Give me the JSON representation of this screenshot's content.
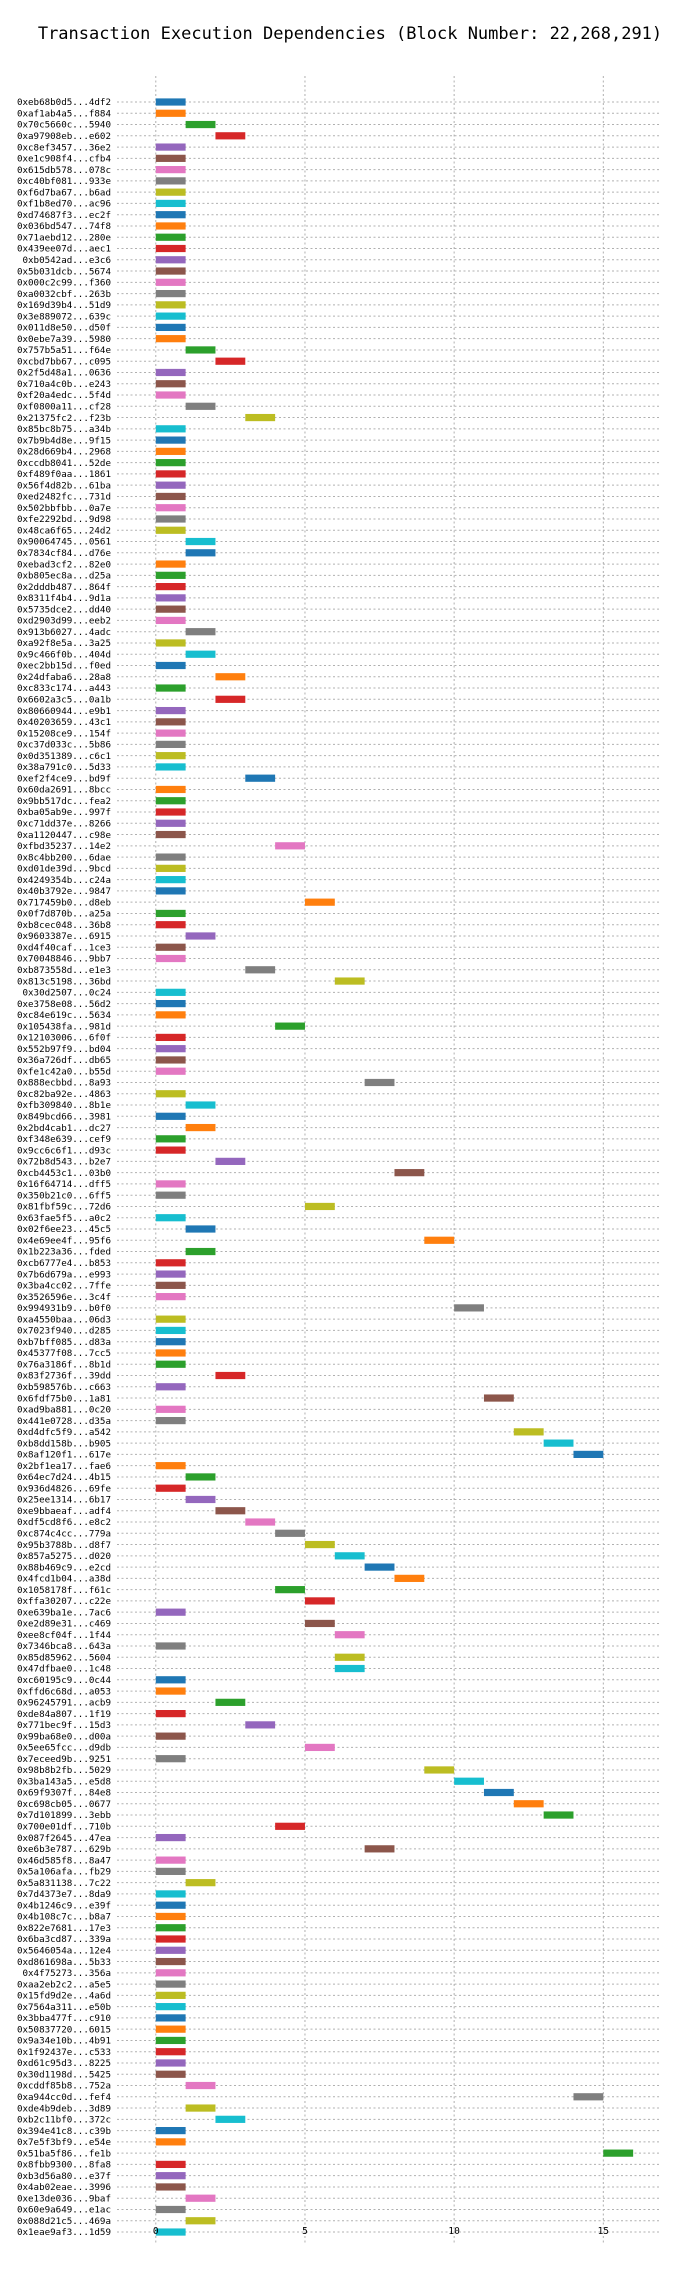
{
  "chart_data": {
    "type": "bar",
    "orientation": "horizontal",
    "title": "Transaction Execution Dependencies (Block Number: 22,268,291)",
    "xlabel": "",
    "ylabel": "",
    "xlim": [
      -1.3,
      16.9
    ],
    "xticks": [
      0,
      5,
      10,
      15
    ],
    "grid": true,
    "colors": [
      "#1f77b4",
      "#ff7f0e",
      "#2ca02c",
      "#d62728",
      "#9467bd",
      "#8c564b",
      "#e377c2",
      "#7f7f7f",
      "#bcbd22",
      "#17becf"
    ],
    "rows": [
      {
        "tx": "0xeb68b0d5...4df2",
        "start": 0,
        "c": 0
      },
      {
        "tx": "0xaf1ab4a5...f884",
        "start": 0,
        "c": 1
      },
      {
        "tx": "0x70c5660c...5940",
        "start": 1,
        "c": 2
      },
      {
        "tx": "0xa97908eb...e602",
        "start": 2,
        "c": 3
      },
      {
        "tx": "0xc8ef3457...36e2",
        "start": 0,
        "c": 4
      },
      {
        "tx": "0xe1c908f4...cfb4",
        "start": 0,
        "c": 5
      },
      {
        "tx": "0x615db578...078c",
        "start": 0,
        "c": 6
      },
      {
        "tx": "0xc40bf081...933e",
        "start": 0,
        "c": 7
      },
      {
        "tx": "0xf6d7ba67...b6ad",
        "start": 0,
        "c": 8
      },
      {
        "tx": "0xf1b8ed70...ac96",
        "start": 0,
        "c": 9
      },
      {
        "tx": "0xd74687f3...ec2f",
        "start": 0,
        "c": 0
      },
      {
        "tx": "0x036bd547...74f8",
        "start": 0,
        "c": 1
      },
      {
        "tx": "0x71aebd12...280e",
        "start": 0,
        "c": 2
      },
      {
        "tx": "0x439ee07d...aec1",
        "start": 0,
        "c": 3
      },
      {
        "tx": "0xb0542ad...e3c6",
        "start": 0,
        "c": 4
      },
      {
        "tx": "0x5b031dcb...5674",
        "start": 0,
        "c": 5
      },
      {
        "tx": "0x000c2c99...f360",
        "start": 0,
        "c": 6
      },
      {
        "tx": "0xa0032cbf...263b",
        "start": 0,
        "c": 7
      },
      {
        "tx": "0x169d39b4...51d9",
        "start": 0,
        "c": 8
      },
      {
        "tx": "0x3e889072...639c",
        "start": 0,
        "c": 9
      },
      {
        "tx": "0x011d8e50...d50f",
        "start": 0,
        "c": 0
      },
      {
        "tx": "0x0ebe7a39...5980",
        "start": 0,
        "c": 1
      },
      {
        "tx": "0x757b5a51...f64e",
        "start": 1,
        "c": 2
      },
      {
        "tx": "0xcbd7bb67...c095",
        "start": 2,
        "c": 3
      },
      {
        "tx": "0x2f5d48a1...0636",
        "start": 0,
        "c": 4
      },
      {
        "tx": "0x710a4c0b...e243",
        "start": 0,
        "c": 5
      },
      {
        "tx": "0xf20a4edc...5f4d",
        "start": 0,
        "c": 6
      },
      {
        "tx": "0xf0800a11...cf28",
        "start": 1,
        "c": 7
      },
      {
        "tx": "0x21375fc2...f23b",
        "start": 3,
        "c": 8
      },
      {
        "tx": "0x85bc8b75...a34b",
        "start": 0,
        "c": 9
      },
      {
        "tx": "0x7b9b4d8e...9f15",
        "start": 0,
        "c": 0
      },
      {
        "tx": "0x28d669b4...2968",
        "start": 0,
        "c": 1
      },
      {
        "tx": "0xccdb8041...52de",
        "start": 0,
        "c": 2
      },
      {
        "tx": "0xf489f0aa...1861",
        "start": 0,
        "c": 3
      },
      {
        "tx": "0x56f4d82b...61ba",
        "start": 0,
        "c": 4
      },
      {
        "tx": "0xed2482fc...731d",
        "start": 0,
        "c": 5
      },
      {
        "tx": "0x502bbfbb...0a7e",
        "start": 0,
        "c": 6
      },
      {
        "tx": "0xfe2292bd...9d98",
        "start": 0,
        "c": 7
      },
      {
        "tx": "0x48ca6f65...24d2",
        "start": 0,
        "c": 8
      },
      {
        "tx": "0x90064745...0561",
        "start": 1,
        "c": 9
      },
      {
        "tx": "0x7834cf84...d76e",
        "start": 1,
        "c": 0
      },
      {
        "tx": "0xebad3cf2...82e0",
        "start": 0,
        "c": 1
      },
      {
        "tx": "0xb805ec8a...d25a",
        "start": 0,
        "c": 2
      },
      {
        "tx": "0x2dddb487...864f",
        "start": 0,
        "c": 3
      },
      {
        "tx": "0x8311f4b4...9d1a",
        "start": 0,
        "c": 4
      },
      {
        "tx": "0x5735dce2...dd40",
        "start": 0,
        "c": 5
      },
      {
        "tx": "0xd2903d99...eeb2",
        "start": 0,
        "c": 6
      },
      {
        "tx": "0x913b6027...4adc",
        "start": 1,
        "c": 7
      },
      {
        "tx": "0xa92f8e5a...3a25",
        "start": 0,
        "c": 8
      },
      {
        "tx": "0x9c466f0b...404d",
        "start": 1,
        "c": 9
      },
      {
        "tx": "0xec2bb15d...f0ed",
        "start": 0,
        "c": 0
      },
      {
        "tx": "0x24dfaba6...28a8",
        "start": 2,
        "c": 1
      },
      {
        "tx": "0xc833c174...a443",
        "start": 0,
        "c": 2
      },
      {
        "tx": "0x6602a3c5...0a1b",
        "start": 2,
        "c": 3
      },
      {
        "tx": "0x80660944...e9b1",
        "start": 0,
        "c": 4
      },
      {
        "tx": "0x40203659...43c1",
        "start": 0,
        "c": 5
      },
      {
        "tx": "0x15208ce9...154f",
        "start": 0,
        "c": 6
      },
      {
        "tx": "0xc37d033c...5b86",
        "start": 0,
        "c": 7
      },
      {
        "tx": "0x0d351389...c6c1",
        "start": 0,
        "c": 8
      },
      {
        "tx": "0x38a791c0...5d33",
        "start": 0,
        "c": 9
      },
      {
        "tx": "0xef2f4ce9...bd9f",
        "start": 3,
        "c": 0
      },
      {
        "tx": "0x60da2691...8bcc",
        "start": 0,
        "c": 1
      },
      {
        "tx": "0x9bb517dc...fea2",
        "start": 0,
        "c": 2
      },
      {
        "tx": "0xba05ab9e...997f",
        "start": 0,
        "c": 3
      },
      {
        "tx": "0xc71dd37e...8266",
        "start": 0,
        "c": 4
      },
      {
        "tx": "0xa1120447...c98e",
        "start": 0,
        "c": 5
      },
      {
        "tx": "0xfbd35237...14e2",
        "start": 4,
        "c": 6
      },
      {
        "tx": "0x8c4bb200...6dae",
        "start": 0,
        "c": 7
      },
      {
        "tx": "0xd01de39d...9bcd",
        "start": 0,
        "c": 8
      },
      {
        "tx": "0x4249354b...c24a",
        "start": 0,
        "c": 9
      },
      {
        "tx": "0x40b3792e...9847",
        "start": 0,
        "c": 0
      },
      {
        "tx": "0x717459b0...d8eb",
        "start": 5,
        "c": 1
      },
      {
        "tx": "0x0f7d870b...a25a",
        "start": 0,
        "c": 2
      },
      {
        "tx": "0xb8cec048...36b8",
        "start": 0,
        "c": 3
      },
      {
        "tx": "0x9603387e...6915",
        "start": 1,
        "c": 4
      },
      {
        "tx": "0xd4f40caf...1ce3",
        "start": 0,
        "c": 5
      },
      {
        "tx": "0x70048846...9bb7",
        "start": 0,
        "c": 6
      },
      {
        "tx": "0xb873558d...e1e3",
        "start": 3,
        "c": 7
      },
      {
        "tx": "0x813c5198...36bd",
        "start": 6,
        "c": 8
      },
      {
        "tx": "0x30d2507...0c24",
        "start": 0,
        "c": 9
      },
      {
        "tx": "0xe3758e08...56d2",
        "start": 0,
        "c": 0
      },
      {
        "tx": "0xc84e619c...5634",
        "start": 0,
        "c": 1
      },
      {
        "tx": "0x105438fa...981d",
        "start": 4,
        "c": 2
      },
      {
        "tx": "0x12103006...6f0f",
        "start": 0,
        "c": 3
      },
      {
        "tx": "0x552b97f9...bd04",
        "start": 0,
        "c": 4
      },
      {
        "tx": "0x36a726df...db65",
        "start": 0,
        "c": 5
      },
      {
        "tx": "0xfe1c42a0...b55d",
        "start": 0,
        "c": 6
      },
      {
        "tx": "0x888ecbbd...8a93",
        "start": 7,
        "c": 7
      },
      {
        "tx": "0xc82ba92e...4863",
        "start": 0,
        "c": 8
      },
      {
        "tx": "0xfb309840...8b1e",
        "start": 1,
        "c": 9
      },
      {
        "tx": "0x849bcd66...3981",
        "start": 0,
        "c": 0
      },
      {
        "tx": "0x2bd4cab1...dc27",
        "start": 1,
        "c": 1
      },
      {
        "tx": "0xf348e639...cef9",
        "start": 0,
        "c": 2
      },
      {
        "tx": "0x9cc6c6f1...d93c",
        "start": 0,
        "c": 3
      },
      {
        "tx": "0x72b8d543...b2e7",
        "start": 2,
        "c": 4
      },
      {
        "tx": "0xcb4453c1...03b0",
        "start": 8,
        "c": 5
      },
      {
        "tx": "0x16f64714...dff5",
        "start": 0,
        "c": 6
      },
      {
        "tx": "0x350b21c0...6ff5",
        "start": 0,
        "c": 7
      },
      {
        "tx": "0x81fbf59c...72d6",
        "start": 5,
        "c": 8
      },
      {
        "tx": "0x63fae5f5...a0c2",
        "start": 0,
        "c": 9
      },
      {
        "tx": "0x02f6ee23...45c5",
        "start": 1,
        "c": 0
      },
      {
        "tx": "0x4e69ee4f...95f6",
        "start": 9,
        "c": 1
      },
      {
        "tx": "0x1b223a36...fded",
        "start": 1,
        "c": 2
      },
      {
        "tx": "0xcb6777e4...b853",
        "start": 0,
        "c": 3
      },
      {
        "tx": "0x7b6d679a...e993",
        "start": 0,
        "c": 4
      },
      {
        "tx": "0x3ba4cc02...7ffe",
        "start": 0,
        "c": 5
      },
      {
        "tx": "0x3526596e...3c4f",
        "start": 0,
        "c": 6
      },
      {
        "tx": "0x994931b9...b0f0",
        "start": 10,
        "c": 7
      },
      {
        "tx": "0xa4550baa...06d3",
        "start": 0,
        "c": 8
      },
      {
        "tx": "0x7023f940...d285",
        "start": 0,
        "c": 9
      },
      {
        "tx": "0xb7bff085...d83a",
        "start": 0,
        "c": 0
      },
      {
        "tx": "0x45377f08...7cc5",
        "start": 0,
        "c": 1
      },
      {
        "tx": "0x76a3186f...8b1d",
        "start": 0,
        "c": 2
      },
      {
        "tx": "0x83f2736f...39dd",
        "start": 2,
        "c": 3
      },
      {
        "tx": "0xb598576b...c663",
        "start": 0,
        "c": 4
      },
      {
        "tx": "0x6fdf75b0...1a81",
        "start": 11,
        "c": 5
      },
      {
        "tx": "0xad9ba881...0c20",
        "start": 0,
        "c": 6
      },
      {
        "tx": "0x441e0728...d35a",
        "start": 0,
        "c": 7
      },
      {
        "tx": "0xd4dfc5f9...a542",
        "start": 12,
        "c": 8
      },
      {
        "tx": "0xb8dd158b...b905",
        "start": 13,
        "c": 9
      },
      {
        "tx": "0x8af120f1...617e",
        "start": 14,
        "c": 0
      },
      {
        "tx": "0x2bf1ea17...fae6",
        "start": 0,
        "c": 1
      },
      {
        "tx": "0x64ec7d24...4b15",
        "start": 1,
        "c": 2
      },
      {
        "tx": "0x936d4826...69fe",
        "start": 0,
        "c": 3
      },
      {
        "tx": "0x25ee1314...6b17",
        "start": 1,
        "c": 4
      },
      {
        "tx": "0xe9bbaeaf...adf4",
        "start": 2,
        "c": 5
      },
      {
        "tx": "0xdf5cd8f6...e8c2",
        "start": 3,
        "c": 6
      },
      {
        "tx": "0xc874c4cc...779a",
        "start": 4,
        "c": 7
      },
      {
        "tx": "0x95b3788b...d8f7",
        "start": 5,
        "c": 8
      },
      {
        "tx": "0x857a5275...d020",
        "start": 6,
        "c": 9
      },
      {
        "tx": "0x88b469c9...e2cd",
        "start": 7,
        "c": 0
      },
      {
        "tx": "0x4fcd1b04...a38d",
        "start": 8,
        "c": 1
      },
      {
        "tx": "0x1058178f...f61c",
        "start": 4,
        "c": 2
      },
      {
        "tx": "0xffa30207...c22e",
        "start": 5,
        "c": 3
      },
      {
        "tx": "0xe639ba1e...7ac6",
        "start": 0,
        "c": 4
      },
      {
        "tx": "0xe2d89e31...c469",
        "start": 5,
        "c": 5
      },
      {
        "tx": "0xee8cf04f...1f44",
        "start": 6,
        "c": 6
      },
      {
        "tx": "0x7346bca8...643a",
        "start": 0,
        "c": 7
      },
      {
        "tx": "0x85d85962...5604",
        "start": 6,
        "c": 8
      },
      {
        "tx": "0x47dfbae0...1c48",
        "start": 6,
        "c": 9
      },
      {
        "tx": "0xc60195c9...0c44",
        "start": 0,
        "c": 0
      },
      {
        "tx": "0xffd6c68d...a053",
        "start": 0,
        "c": 1
      },
      {
        "tx": "0x96245791...acb9",
        "start": 2,
        "c": 2
      },
      {
        "tx": "0xde84a807...1f19",
        "start": 0,
        "c": 3
      },
      {
        "tx": "0x771bec9f...15d3",
        "start": 3,
        "c": 4
      },
      {
        "tx": "0x99ba68e0...d00a",
        "start": 0,
        "c": 5
      },
      {
        "tx": "0x5ee65fcc...d9db",
        "start": 5,
        "c": 6
      },
      {
        "tx": "0x7eceed9b...9251",
        "start": 0,
        "c": 7
      },
      {
        "tx": "0x98b8b2fb...5029",
        "start": 9,
        "c": 8
      },
      {
        "tx": "0x3ba143a5...e5d8",
        "start": 10,
        "c": 9
      },
      {
        "tx": "0x69f9307f...84e8",
        "start": 11,
        "c": 0
      },
      {
        "tx": "0xc698cb05...0677",
        "start": 12,
        "c": 1
      },
      {
        "tx": "0x7d101899...3ebb",
        "start": 13,
        "c": 2
      },
      {
        "tx": "0x700e01df...710b",
        "start": 4,
        "c": 3
      },
      {
        "tx": "0x087f2645...47ea",
        "start": 0,
        "c": 4
      },
      {
        "tx": "0xe6b3e787...629b",
        "start": 7,
        "c": 5
      },
      {
        "tx": "0x46d585f8...8a47",
        "start": 0,
        "c": 6
      },
      {
        "tx": "0x5a106afa...fb29",
        "start": 0,
        "c": 7
      },
      {
        "tx": "0x5a831138...7c22",
        "start": 1,
        "c": 8
      },
      {
        "tx": "0x7d4373e7...8da9",
        "start": 0,
        "c": 9
      },
      {
        "tx": "0x4b1246c9...e39f",
        "start": 0,
        "c": 0
      },
      {
        "tx": "0x4b108c7c...b8a7",
        "start": 0,
        "c": 1
      },
      {
        "tx": "0x822e7681...17e3",
        "start": 0,
        "c": 2
      },
      {
        "tx": "0x6ba3cd87...339a",
        "start": 0,
        "c": 3
      },
      {
        "tx": "0x5646054a...12e4",
        "start": 0,
        "c": 4
      },
      {
        "tx": "0xd861698a...5b33",
        "start": 0,
        "c": 5
      },
      {
        "tx": "0x4f75273...356a",
        "start": 0,
        "c": 6
      },
      {
        "tx": "0xaa2eb2c2...a5e5",
        "start": 0,
        "c": 7
      },
      {
        "tx": "0x15fd9d2e...4a6d",
        "start": 0,
        "c": 8
      },
      {
        "tx": "0x7564a311...e50b",
        "start": 0,
        "c": 9
      },
      {
        "tx": "0x3bba477f...c910",
        "start": 0,
        "c": 0
      },
      {
        "tx": "0x50837720...6015",
        "start": 0,
        "c": 1
      },
      {
        "tx": "0x9a34e10b...4b91",
        "start": 0,
        "c": 2
      },
      {
        "tx": "0x1f92437e...c533",
        "start": 0,
        "c": 3
      },
      {
        "tx": "0xd61c95d3...8225",
        "start": 0,
        "c": 4
      },
      {
        "tx": "0x30d1198d...5425",
        "start": 0,
        "c": 5
      },
      {
        "tx": "0xcddf85b8...752a",
        "start": 1,
        "c": 6
      },
      {
        "tx": "0xa944cc0d...fef4",
        "start": 14,
        "c": 7
      },
      {
        "tx": "0xde4b9deb...3d89",
        "start": 1,
        "c": 8
      },
      {
        "tx": "0xb2c11bf0...372c",
        "start": 2,
        "c": 9
      },
      {
        "tx": "0x394e41c8...c39b",
        "start": 0,
        "c": 0
      },
      {
        "tx": "0x7e5f3bf9...e54e",
        "start": 0,
        "c": 1
      },
      {
        "tx": "0x51ba5f86...fe1b",
        "start": 15,
        "c": 2
      },
      {
        "tx": "0x8fbb9300...8fa8",
        "start": 0,
        "c": 3
      },
      {
        "tx": "0xb3d56a80...e37f",
        "start": 0,
        "c": 4
      },
      {
        "tx": "0x4ab02eae...3996",
        "start": 0,
        "c": 5
      },
      {
        "tx": "0xe13de036...9baf",
        "start": 1,
        "c": 6
      },
      {
        "tx": "0x60e9a649...e1ac",
        "start": 0,
        "c": 7
      },
      {
        "tx": "0x088d21c5...469a",
        "start": 1,
        "c": 8
      },
      {
        "tx": "0x1eae9af3...1d59",
        "start": 0,
        "c": 9
      }
    ]
  }
}
